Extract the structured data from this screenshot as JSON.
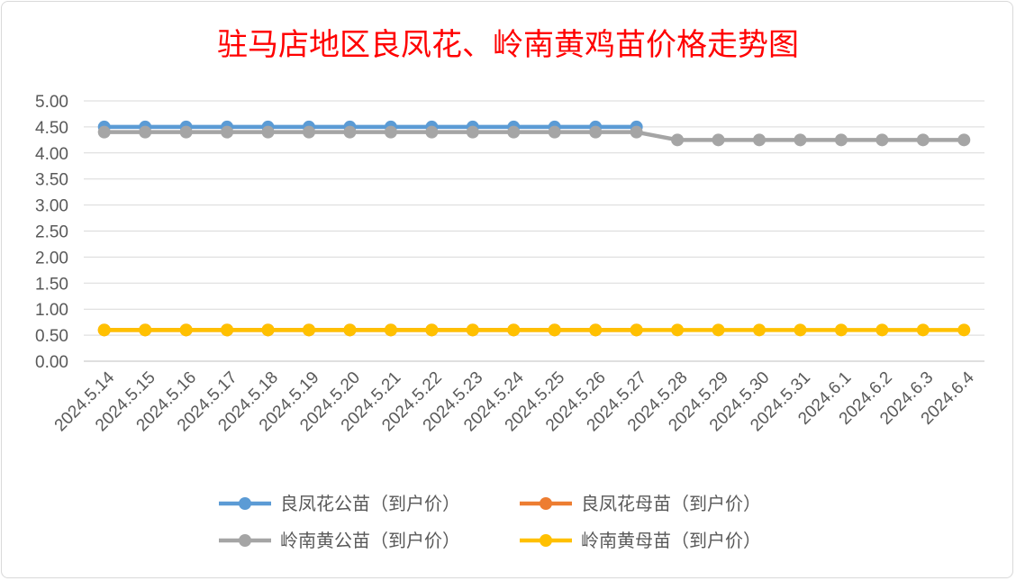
{
  "chart_data": {
    "type": "line",
    "title": "驻马店地区良凤花、岭南黄鸡苗价格走势图",
    "categories": [
      "2024.5.14",
      "2024.5.15",
      "2024.5.16",
      "2024.5.17",
      "2024.5.18",
      "2024.5.19",
      "2024.5.20",
      "2024.5.21",
      "2024.5.22",
      "2024.5.23",
      "2024.5.24",
      "2024.5.25",
      "2024.5.26",
      "2024.5.27",
      "2024.5.28",
      "2024.5.29",
      "2024.5.30",
      "2024.5.31",
      "2024.6.1",
      "2024.6.2",
      "2024.6.3",
      "2024.6.4"
    ],
    "ylim": [
      0,
      5
    ],
    "ytick_labels": [
      "0.00",
      "0.50",
      "1.00",
      "1.50",
      "2.00",
      "2.50",
      "3.00",
      "3.50",
      "4.00",
      "4.50",
      "5.00"
    ],
    "grid": true,
    "legend_position": "bottom",
    "series": [
      {
        "name": "良凤花公苗（到户价）",
        "color": "#5b9bd5",
        "values": [
          4.5,
          4.5,
          4.5,
          4.5,
          4.5,
          4.5,
          4.5,
          4.5,
          4.5,
          4.5,
          4.5,
          4.5,
          4.5,
          4.5,
          null,
          null,
          null,
          null,
          null,
          null,
          null,
          null
        ]
      },
      {
        "name": "良凤花母苗（到户价）",
        "color": "#ed7d31",
        "values": [
          0.6,
          0.6,
          0.6,
          0.6,
          0.6,
          0.6,
          0.6,
          0.6,
          0.6,
          0.6,
          0.6,
          0.6,
          0.6,
          0.6,
          null,
          null,
          null,
          null,
          null,
          null,
          null,
          null
        ]
      },
      {
        "name": "岭南黄公苗（到户价）",
        "color": "#a5a5a5",
        "values": [
          4.4,
          4.4,
          4.4,
          4.4,
          4.4,
          4.4,
          4.4,
          4.4,
          4.4,
          4.4,
          4.4,
          4.4,
          4.4,
          4.4,
          4.25,
          4.25,
          4.25,
          4.25,
          4.25,
          4.25,
          4.25,
          4.25
        ]
      },
      {
        "name": "岭南黄母苗（到户价）",
        "color": "#ffc000",
        "values": [
          0.6,
          0.6,
          0.6,
          0.6,
          0.6,
          0.6,
          0.6,
          0.6,
          0.6,
          0.6,
          0.6,
          0.6,
          0.6,
          0.6,
          0.6,
          0.6,
          0.6,
          0.6,
          0.6,
          0.6,
          0.6,
          0.6
        ]
      }
    ]
  }
}
